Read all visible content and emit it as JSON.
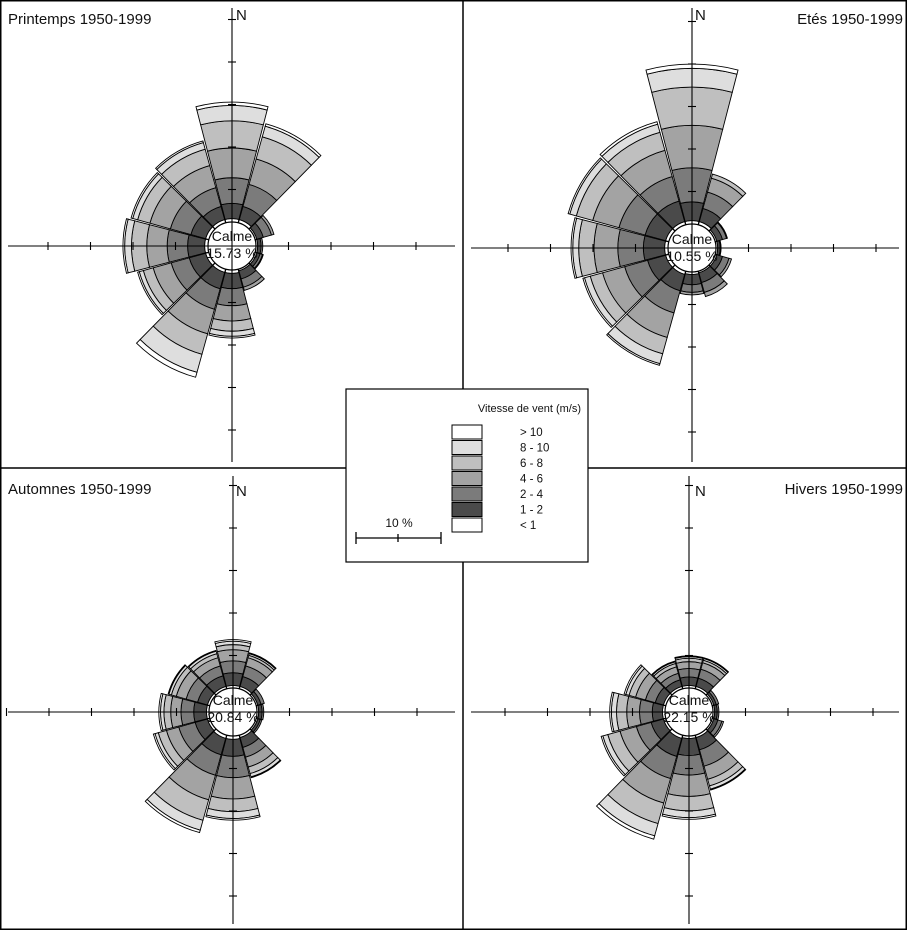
{
  "chart_data": {
    "type": "wind-rose",
    "legend": {
      "title": "Vitesse de vent (m/s)",
      "classes": [
        {
          "label": "> 10",
          "color": "#ffffff"
        },
        {
          "label": "8 - 10",
          "color": "#dedede"
        },
        {
          "label": "6 -  8",
          "color": "#bfbfbf"
        },
        {
          "label": "4 -  6",
          "color": "#a3a3a3"
        },
        {
          "label": "2 -  4",
          "color": "#7b7b7b"
        },
        {
          "label": "1 -  2",
          "color": "#4a4a4a"
        },
        {
          "label": "< 1",
          "color": "#ffffff"
        }
      ],
      "scale_label": "10 %",
      "scale_percent": 10
    },
    "panels": [
      {
        "title": "Printemps 1950-1999",
        "north": "N",
        "calm_label": "Calme",
        "calm_value": "15.73 %",
        "sectors": [
          {
            "bearing": 0,
            "bands": [
              0.4,
              1.8,
              3.0,
              3.5,
              3.2,
              1.8,
              0.4
            ]
          },
          {
            "bearing": 30,
            "bands": [
              0.4,
              1.6,
              2.7,
              3.1,
              2.7,
              1.3,
              0.3
            ]
          },
          {
            "bearing": 60,
            "bands": [
              0.2,
              0.8,
              1.0,
              0.3,
              0.0,
              0.0,
              0.0
            ]
          },
          {
            "bearing": 90,
            "bands": [
              0.2,
              0.4,
              0.2,
              0.0,
              0.0,
              0.0,
              0.0
            ]
          },
          {
            "bearing": 120,
            "bands": [
              0.2,
              0.4,
              0.3,
              0.1,
              0.0,
              0.0,
              0.0
            ]
          },
          {
            "bearing": 150,
            "bands": [
              0.2,
              1.0,
              1.0,
              0.4,
              0.0,
              0.0,
              0.0
            ]
          },
          {
            "bearing": 180,
            "bands": [
              0.4,
              1.8,
              2.0,
              1.8,
              1.2,
              0.6,
              0.2
            ]
          },
          {
            "bearing": 210,
            "bands": [
              0.4,
              2.0,
              2.5,
              3.0,
              2.5,
              2.2,
              0.6
            ]
          },
          {
            "bearing": 240,
            "bands": [
              0.4,
              2.0,
              2.2,
              2.2,
              1.2,
              0.5,
              0.2
            ]
          },
          {
            "bearing": 270,
            "bands": [
              0.4,
              2.0,
              2.4,
              2.4,
              1.8,
              0.8,
              0.2
            ]
          },
          {
            "bearing": 300,
            "bands": [
              0.4,
              1.8,
              2.5,
              2.5,
              1.5,
              0.6,
              0.2
            ]
          },
          {
            "bearing": 330,
            "bands": [
              0.4,
              1.6,
              2.3,
              2.7,
              2.0,
              0.8,
              0.2
            ]
          }
        ]
      },
      {
        "title": "Etés 1950-1999",
        "north": "N",
        "calm_label": "Calme",
        "calm_value": "10.55 %",
        "sectors": [
          {
            "bearing": 0,
            "bands": [
              0.4,
              2.2,
              4.0,
              5.0,
              4.5,
              2.2,
              0.5
            ]
          },
          {
            "bearing": 30,
            "bands": [
              0.4,
              1.6,
              2.0,
              1.7,
              0.5,
              0.0,
              0.0
            ]
          },
          {
            "bearing": 60,
            "bands": [
              0.2,
              0.7,
              0.5,
              0.1,
              0.0,
              0.0,
              0.0
            ]
          },
          {
            "bearing": 90,
            "bands": [
              0.2,
              0.3,
              0.1,
              0.0,
              0.0,
              0.0,
              0.0
            ]
          },
          {
            "bearing": 120,
            "bands": [
              0.2,
              0.7,
              0.8,
              0.3,
              0.0,
              0.0,
              0.0
            ]
          },
          {
            "bearing": 150,
            "bands": [
              0.2,
              1.2,
              1.2,
              0.5,
              0.0,
              0.0,
              0.0
            ]
          },
          {
            "bearing": 180,
            "bands": [
              0.3,
              1.2,
              0.9,
              0.3,
              0.0,
              0.0,
              0.0
            ]
          },
          {
            "bearing": 210,
            "bands": [
              0.4,
              2.0,
              2.7,
              3.0,
              2.0,
              1.2,
              0.2
            ]
          },
          {
            "bearing": 240,
            "bands": [
              0.4,
              2.2,
              2.8,
              2.7,
              1.5,
              0.7,
              0.2
            ]
          },
          {
            "bearing": 270,
            "bands": [
              0.4,
              2.5,
              3.0,
              2.8,
              1.8,
              0.7,
              0.2
            ]
          },
          {
            "bearing": 300,
            "bands": [
              0.4,
              2.5,
              3.2,
              3.2,
              2.0,
              0.8,
              0.2
            ]
          },
          {
            "bearing": 330,
            "bands": [
              0.4,
              2.5,
              3.0,
              3.2,
              2.2,
              1.0,
              0.3
            ]
          }
        ]
      },
      {
        "title": "Automnes 1950-1999",
        "north": "N",
        "calm_label": "Calme",
        "calm_value": "20.84 %",
        "sectors": [
          {
            "bearing": 0,
            "bands": [
              0.3,
              1.5,
              1.4,
              1.3,
              0.6,
              0.4,
              0.2
            ]
          },
          {
            "bearing": 30,
            "bands": [
              0.3,
              1.2,
              1.3,
              1.0,
              0.3,
              0.2,
              0.1
            ]
          },
          {
            "bearing": 60,
            "bands": [
              0.2,
              0.4,
              0.4,
              0.0,
              0.0,
              0.0,
              0.0
            ]
          },
          {
            "bearing": 90,
            "bands": [
              0.2,
              0.4,
              0.2,
              0.0,
              0.0,
              0.0,
              0.0
            ]
          },
          {
            "bearing": 120,
            "bands": [
              0.2,
              0.3,
              0.2,
              0.0,
              0.0,
              0.0,
              0.0
            ]
          },
          {
            "bearing": 150,
            "bands": [
              0.3,
              1.2,
              1.2,
              1.2,
              0.8,
              0.4,
              0.1
            ]
          },
          {
            "bearing": 180,
            "bands": [
              0.4,
              2.0,
              2.5,
              2.5,
              1.5,
              0.8,
              0.2
            ]
          },
          {
            "bearing": 210,
            "bands": [
              0.4,
              2.0,
              2.5,
              3.0,
              2.5,
              1.2,
              0.3
            ]
          },
          {
            "bearing": 240,
            "bands": [
              0.3,
              1.5,
              2.0,
              1.5,
              1.0,
              0.4,
              0.2
            ]
          },
          {
            "bearing": 270,
            "bands": [
              0.3,
              1.5,
              1.5,
              1.2,
              0.8,
              0.4,
              0.2
            ]
          },
          {
            "bearing": 300,
            "bands": [
              0.3,
              1.2,
              1.4,
              1.2,
              0.6,
              0.3,
              0.1
            ]
          },
          {
            "bearing": 330,
            "bands": [
              0.3,
              1.3,
              1.2,
              1.0,
              0.5,
              0.3,
              0.1
            ]
          }
        ]
      },
      {
        "title": "Hivers 1950-1999",
        "north": "N",
        "calm_label": "Calme",
        "calm_value": "22.15 %",
        "sectors": [
          {
            "bearing": 0,
            "bands": [
              0.3,
              1.0,
              1.0,
              0.8,
              0.4,
              0.2,
              0.1
            ]
          },
          {
            "bearing": 30,
            "bands": [
              0.3,
              1.0,
              1.1,
              0.8,
              0.3,
              0.2,
              0.1
            ]
          },
          {
            "bearing": 60,
            "bands": [
              0.2,
              0.3,
              0.3,
              0.0,
              0.0,
              0.0,
              0.0
            ]
          },
          {
            "bearing": 90,
            "bands": [
              0.2,
              0.3,
              0.2,
              0.0,
              0.0,
              0.0,
              0.0
            ]
          },
          {
            "bearing": 120,
            "bands": [
              0.2,
              0.5,
              0.5,
              0.2,
              0.0,
              0.0,
              0.0
            ]
          },
          {
            "bearing": 150,
            "bands": [
              0.3,
              1.5,
              2.0,
              1.6,
              0.8,
              0.4,
              0.1
            ]
          },
          {
            "bearing": 180,
            "bands": [
              0.3,
              2.0,
              2.3,
              2.5,
              1.7,
              0.8,
              0.2
            ]
          },
          {
            "bearing": 210,
            "bands": [
              0.4,
              2.2,
              2.7,
              3.0,
              2.5,
              1.5,
              0.4
            ]
          },
          {
            "bearing": 240,
            "bands": [
              0.3,
              1.5,
              1.8,
              2.0,
              1.5,
              0.6,
              0.2
            ]
          },
          {
            "bearing": 270,
            "bands": [
              0.3,
              1.2,
              1.5,
              1.5,
              1.2,
              0.6,
              0.2
            ]
          },
          {
            "bearing": 300,
            "bands": [
              0.3,
              1.0,
              1.2,
              1.2,
              0.8,
              0.4,
              0.2
            ]
          },
          {
            "bearing": 330,
            "bands": [
              0.3,
              0.8,
              0.8,
              0.8,
              0.4,
              0.2,
              0.1
            ]
          }
        ]
      }
    ]
  }
}
